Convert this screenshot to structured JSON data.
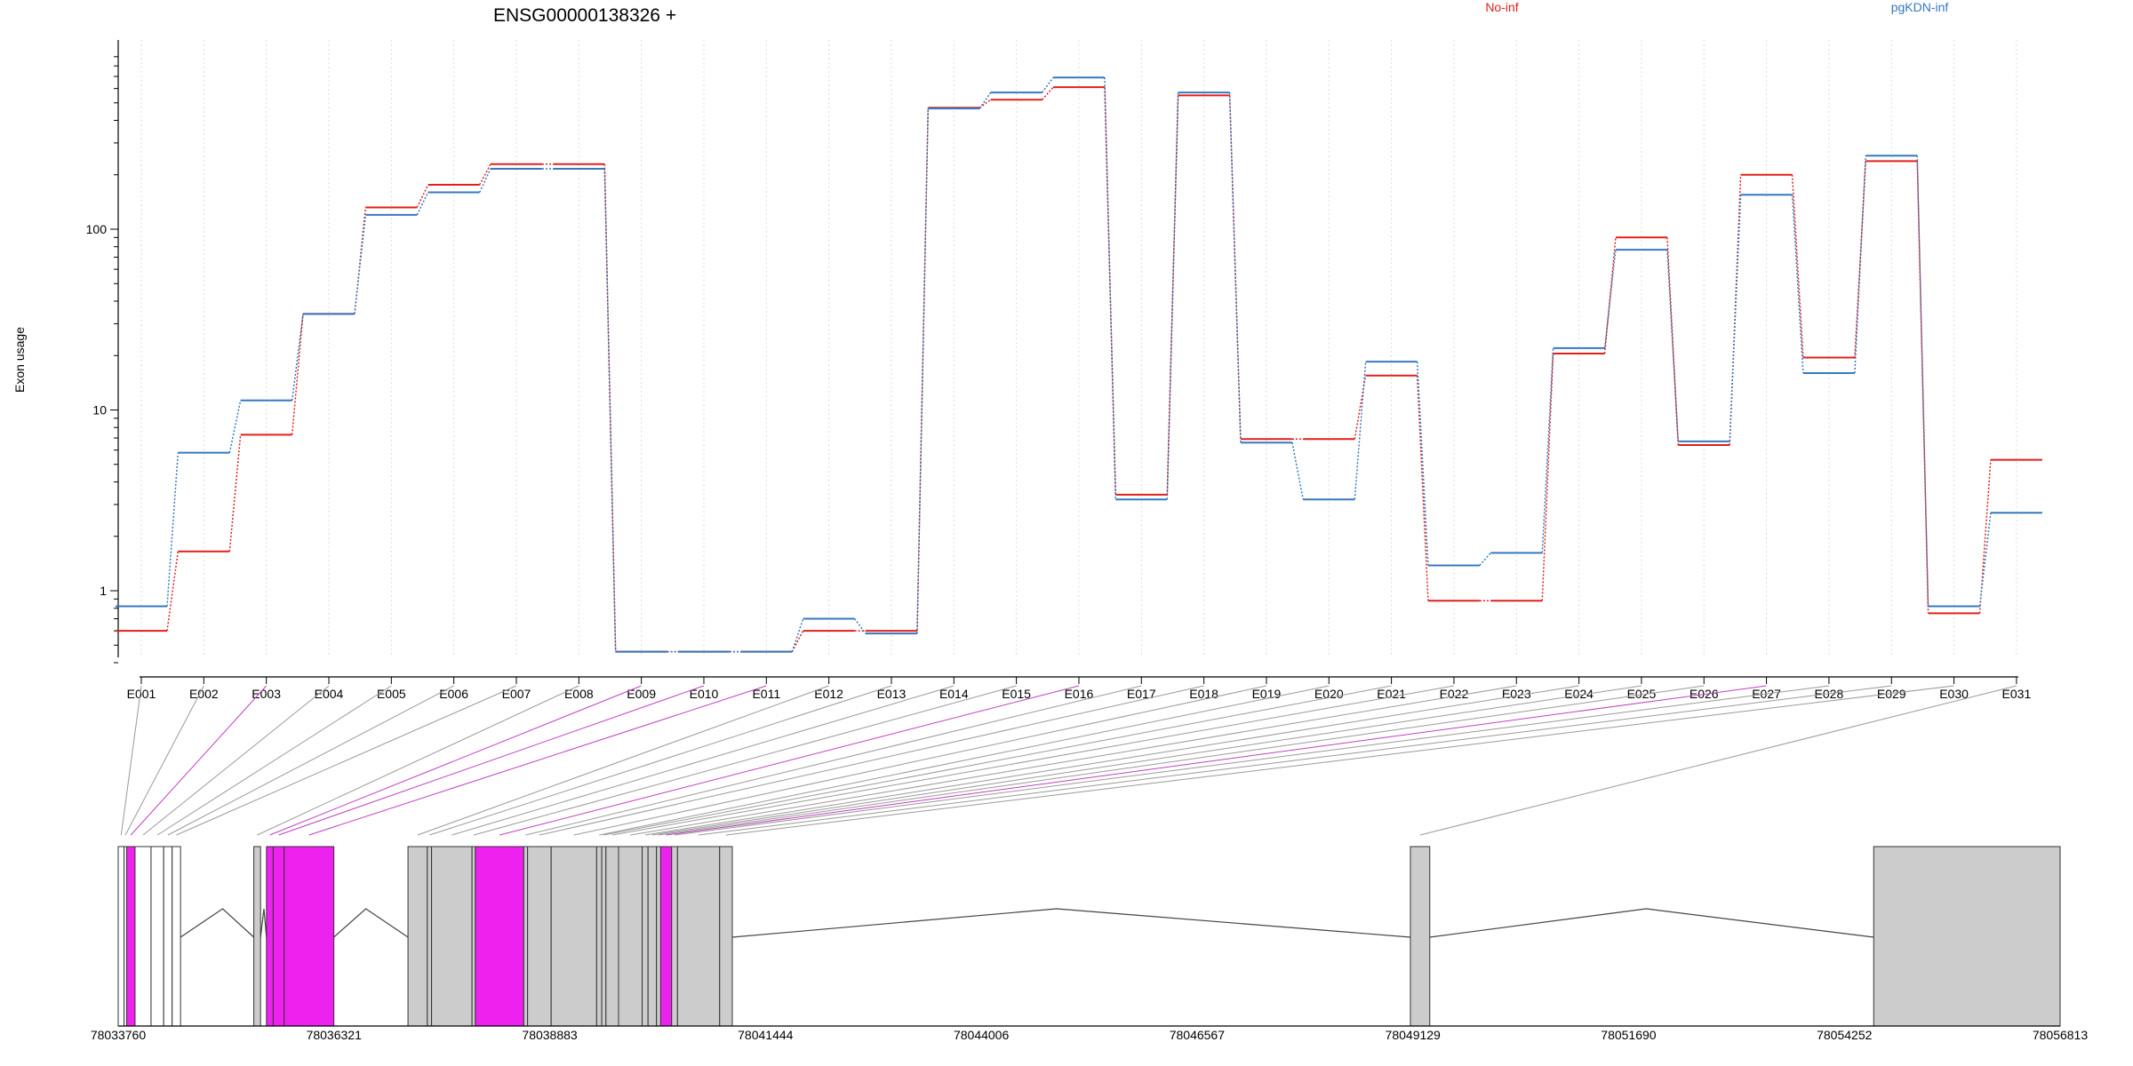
{
  "chart_data": {
    "type": "line",
    "title": "ENSG00000138326 +",
    "ylabel": "Exon usage",
    "y_scale": "log",
    "ylim": [
      0.4,
      900
    ],
    "y_ticks": [
      1,
      10,
      100
    ],
    "y_tick_labels": [
      "1",
      "10",
      "100"
    ],
    "grid": "vertical dotted",
    "legend_placement": "top-right",
    "categories": [
      "E001",
      "E002",
      "E003",
      "E004",
      "E005",
      "E006",
      "E007",
      "E008",
      "E009",
      "E010",
      "E011",
      "E012",
      "E013",
      "E014",
      "E015",
      "E016",
      "E017",
      "E018",
      "E019",
      "E020",
      "E021",
      "E022",
      "E023",
      "E024",
      "E025",
      "E026",
      "E027",
      "E028",
      "E029",
      "E030",
      "E031"
    ],
    "series": [
      {
        "name": "No-inf",
        "color": "#e0201b",
        "values": [
          0.6,
          1.65,
          7.3,
          34,
          132,
          176,
          229,
          229,
          0.46,
          0.46,
          0.46,
          0.6,
          0.6,
          470,
          520,
          610,
          3.4,
          550,
          6.9,
          6.9,
          15.5,
          0.88,
          0.88,
          20.5,
          90,
          6.4,
          200,
          19.5,
          238,
          0.75,
          5.3
        ]
      },
      {
        "name": "pgKDN-inf",
        "color": "#3778bf",
        "values": [
          0.82,
          5.8,
          11.3,
          34,
          120,
          160,
          216,
          216,
          0.46,
          0.46,
          0.46,
          0.7,
          0.58,
          465,
          570,
          690,
          3.2,
          570,
          6.6,
          3.2,
          18.5,
          1.38,
          1.62,
          22,
          77,
          6.7,
          155,
          16,
          255,
          0.82,
          2.7
        ]
      }
    ],
    "gene_track": {
      "axis_labels": [
        "78033760",
        "78036321",
        "78038883",
        "78041444",
        "78044006",
        "78046567",
        "78049129",
        "78051690",
        "78054252",
        "78056813"
      ],
      "axis_values": [
        78033760,
        78036321,
        78038883,
        78041444,
        78044006,
        78046567,
        78049129,
        78051690,
        78054252,
        78056813
      ],
      "range": [
        78033760,
        78056813
      ],
      "exon_color": "#cccccc",
      "highlight_color": "#ee22ee",
      "exon_starts": [
        78033760,
        78033830,
        78033860,
        78033960,
        78034150,
        78034300,
        78034400,
        78035370,
        78035520,
        78035600,
        78035730,
        78037200,
        78037430,
        78037480,
        78037960,
        78038000,
        78038575,
        78038620,
        78038900,
        78039440,
        78039500,
        78039550,
        78039700,
        78039980,
        78040050,
        78040150,
        78040200,
        78040330,
        78040400,
        78040900,
        78049100,
        78054600
      ],
      "exon_ends": [
        78033830,
        78033860,
        78033960,
        78034150,
        78034300,
        78034400,
        78034500,
        78035450,
        78035600,
        78035730,
        78036320,
        78037430,
        78037480,
        78037960,
        78038000,
        78038575,
        78038620,
        78038900,
        78039440,
        78039500,
        78039550,
        78039700,
        78039980,
        78040050,
        78040150,
        78040200,
        78040330,
        78040400,
        78040900,
        78041050,
        78049330,
        78056813
      ],
      "highlighted_exons": [
        2,
        8,
        9,
        10,
        15,
        26
      ],
      "introns": [
        {
          "from": 78034500,
          "to": 78035370,
          "peak": 78035000
        },
        {
          "from": 78035450,
          "to": 78035520,
          "peak": 78035490
        },
        {
          "from": 78036320,
          "to": 78037200,
          "peak": 78036700
        },
        {
          "from": 78041050,
          "to": 78049100,
          "peak": 78044900
        },
        {
          "from": 78049330,
          "to": 78054600,
          "peak": 78051900
        }
      ]
    }
  }
}
